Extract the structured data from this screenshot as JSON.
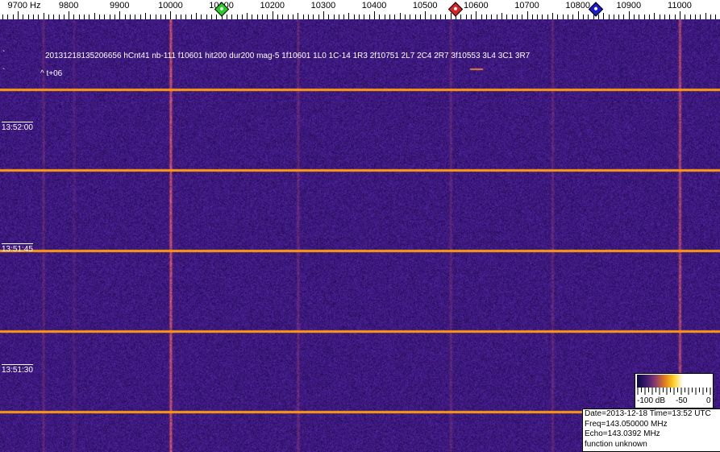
{
  "freq_axis": {
    "labels": [
      "9700 Hz",
      "9800",
      "9900",
      "10000",
      "10100",
      "10200",
      "10300",
      "10400",
      "10500",
      "10600",
      "10700",
      "10800",
      "10900",
      "11000"
    ],
    "markers": [
      {
        "name": "green",
        "freq_hz": 10100,
        "color": "#22cc22"
      },
      {
        "name": "red",
        "freq_hz": 10560,
        "color": "#dd2222"
      },
      {
        "name": "blue",
        "freq_hz": 10835,
        "color": "#1a1acc"
      }
    ]
  },
  "waterfall": {
    "event_text": "20131218135206656 hCnt41 nb-111 f10601 hit200 dur200 mag-5 1f10601 1L0 1C-14 1R3 2f10751 2L7 2C4 2R7 3f10553 3L4 3C1 3R7",
    "offset_text": "^ t+06",
    "time_labels": [
      "13:52:00",
      "13:51:45",
      "13:51:30"
    ],
    "colors": {
      "background": "#3a1f78",
      "line": "#ff9a10"
    }
  },
  "colorbar": {
    "labels": [
      "-100 dB",
      "-50",
      "0"
    ]
  },
  "info": {
    "date_time": "Date=2013-12-18 Time=13:52 UTC",
    "freq": "Freq=143.050000 MHz",
    "echo": "Echo=143.0392 MHz",
    "function": "function unknown"
  }
}
